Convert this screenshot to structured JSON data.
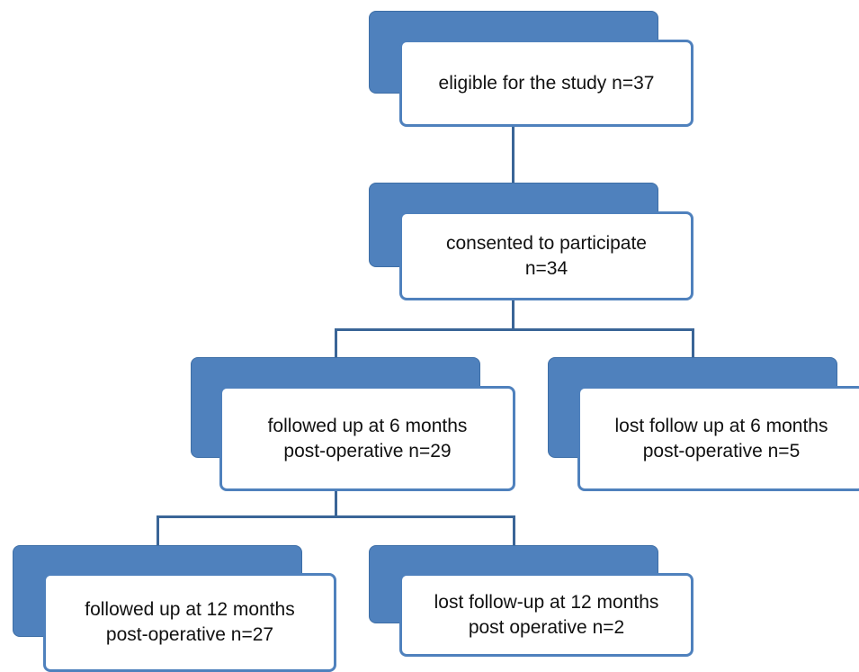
{
  "diagram": {
    "nodes": [
      {
        "id": "eligible",
        "lines": [
          "eligible for the study n=37"
        ]
      },
      {
        "id": "consented",
        "lines": [
          "consented to participate",
          "n=34"
        ]
      },
      {
        "id": "followed6",
        "lines": [
          "followed up at 6 months",
          "post-operative n=29"
        ]
      },
      {
        "id": "lost6",
        "lines": [
          "lost follow up at 6 months",
          "post-operative n=5"
        ]
      },
      {
        "id": "followed12",
        "lines": [
          "followed up at 12 months",
          "post-operative n=27"
        ]
      },
      {
        "id": "lost12",
        "lines": [
          "lost follow-up at 12 months",
          "post operative n=2"
        ]
      }
    ]
  },
  "colors": {
    "box_fill": "#4f81bd",
    "box_border": "#4f81bd",
    "connector": "#3a6597"
  }
}
